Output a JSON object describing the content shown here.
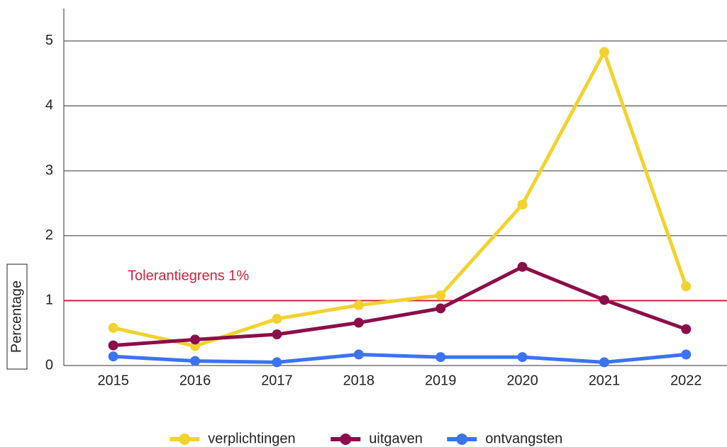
{
  "chart_data": {
    "type": "line",
    "y_label": "Percentage",
    "categories": [
      "2015",
      "2016",
      "2017",
      "2018",
      "2019",
      "2020",
      "2021",
      "2022"
    ],
    "series": [
      {
        "name": "verplichtingen",
        "color": "#f2d22e",
        "values": [
          0.58,
          0.3,
          0.72,
          0.93,
          1.08,
          2.48,
          4.83,
          1.22
        ]
      },
      {
        "name": "uitgaven",
        "color": "#8b0e4a",
        "values": [
          0.31,
          0.4,
          0.48,
          0.66,
          0.88,
          1.52,
          1.01,
          0.56
        ]
      },
      {
        "name": "ontvangsten",
        "color": "#3b73f0",
        "values": [
          0.14,
          0.07,
          0.05,
          0.17,
          0.13,
          0.13,
          0.05,
          0.17
        ]
      }
    ],
    "reference_line": {
      "value": 1,
      "label": "Tolerantiegrens 1%",
      "color": "#d0213b"
    },
    "ylim": [
      0,
      5.5
    ],
    "yticks": [
      0,
      1,
      2,
      3,
      4,
      5
    ],
    "grid": true,
    "legend": "bottom"
  }
}
